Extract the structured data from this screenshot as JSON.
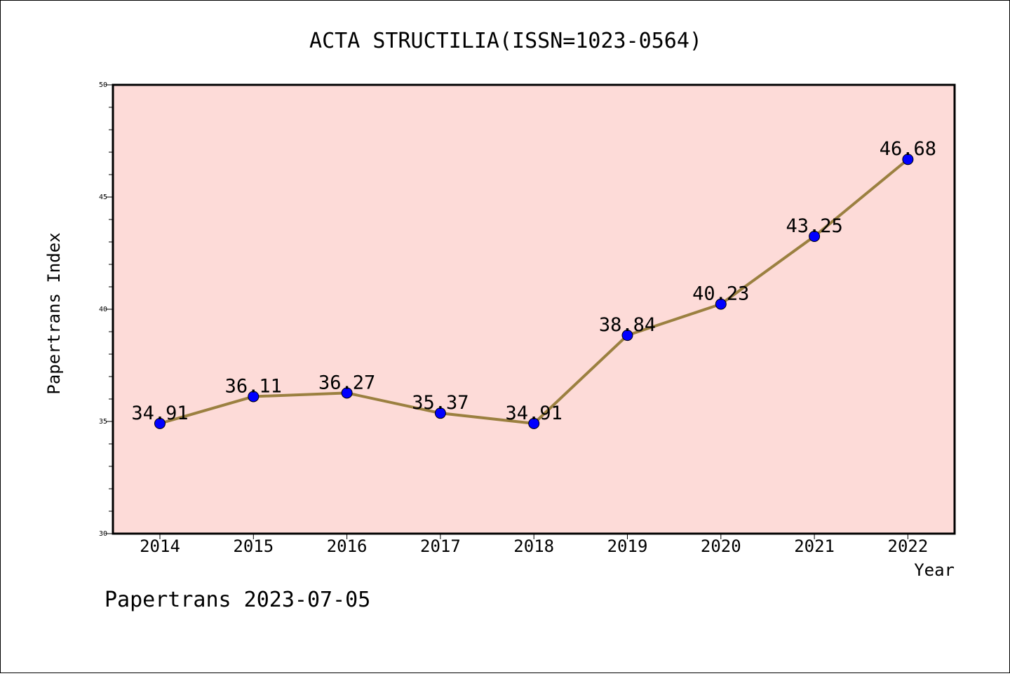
{
  "chart_data": {
    "type": "line",
    "title": "ACTA STRUCTILIA(ISSN=1023-0564)",
    "xlabel": "Year",
    "ylabel": "Papertrans Index",
    "categories": [
      "2014",
      "2015",
      "2016",
      "2017",
      "2018",
      "2019",
      "2020",
      "2021",
      "2022"
    ],
    "values": [
      34.91,
      36.11,
      36.27,
      35.37,
      34.91,
      38.84,
      40.23,
      43.25,
      46.68
    ],
    "data_labels": [
      "34.91",
      "36.11",
      "36.27",
      "35.37",
      "34.91",
      "38.84",
      "40.23",
      "43.25",
      "46.68"
    ],
    "ylim": [
      30,
      50
    ],
    "yticks": [
      "30",
      "35",
      "40",
      "45",
      "50"
    ],
    "grid": false,
    "legend": "none",
    "line_color": "#9b8040",
    "marker_color": "#0000ff",
    "plot_background": "#fddbd8"
  },
  "footer": "Papertrans 2023-07-05"
}
